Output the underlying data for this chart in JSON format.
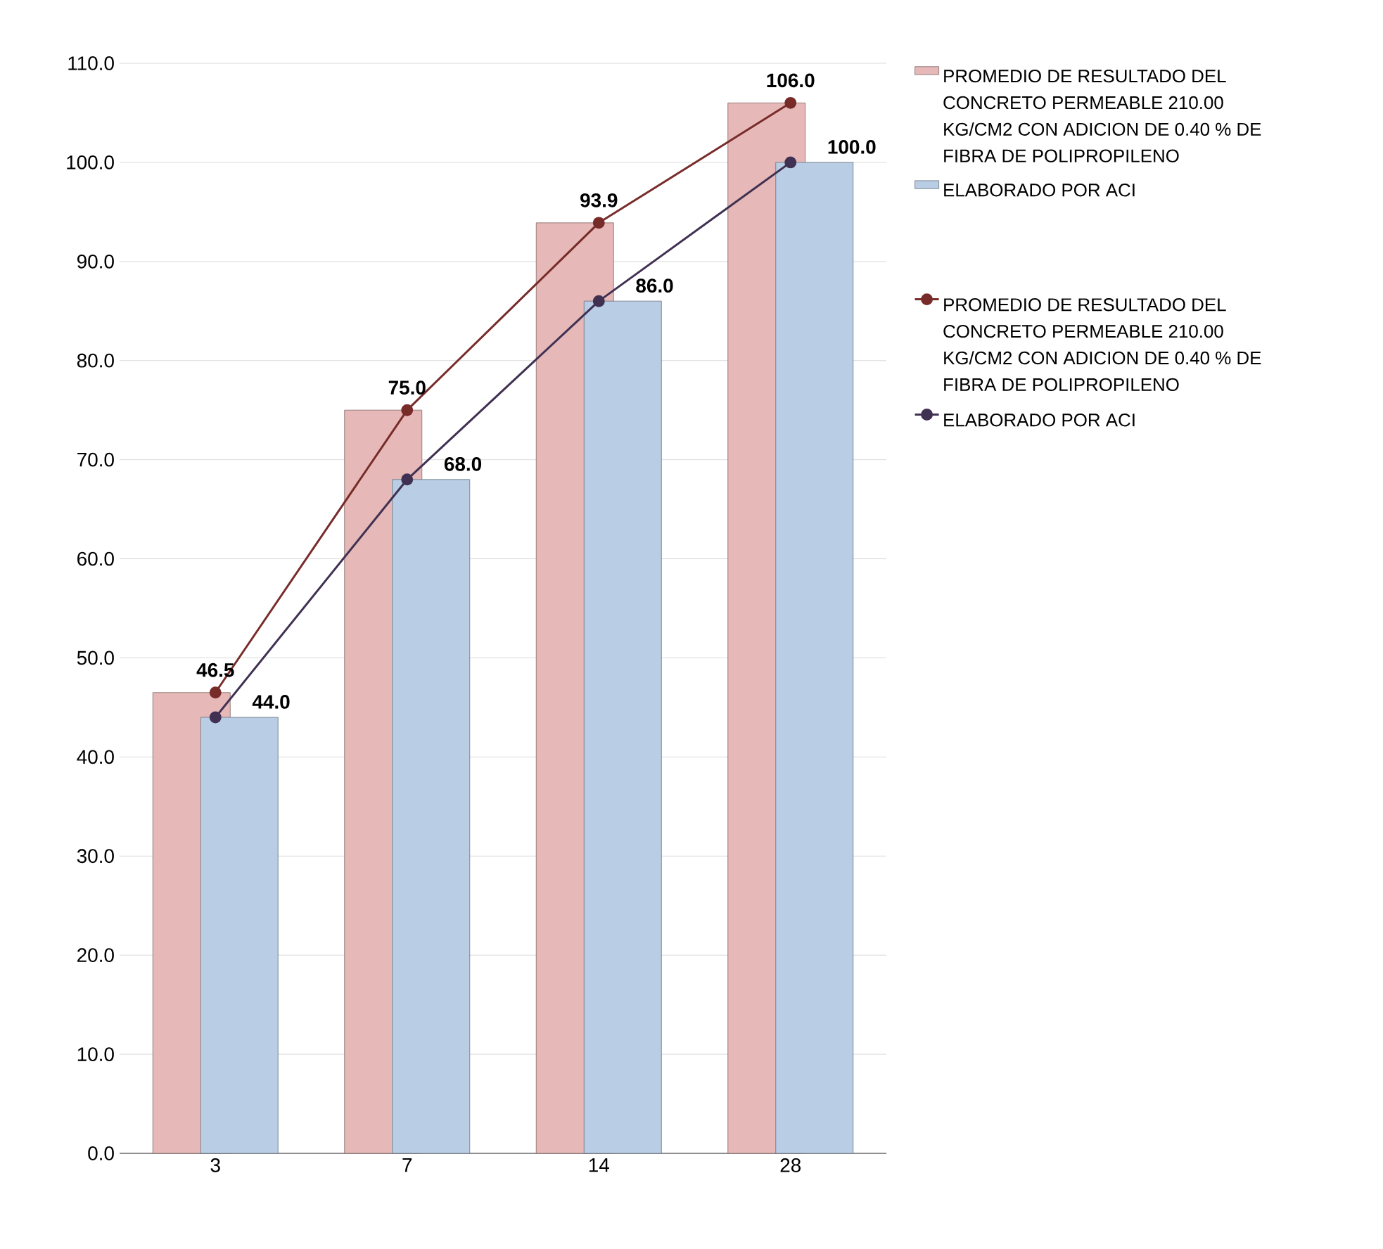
{
  "chart_data": {
    "type": "bar",
    "categories": [
      "3",
      "7",
      "14",
      "28"
    ],
    "series": [
      {
        "name": "PROMEDIO DE RESULTADO DEL CONCRETO PERMEABLE 210.00 KG/CM2 CON ADICION DE 0.40 % DE FIBRA DE POLIPROPILENO",
        "type": "bar",
        "color": "#e6b9b8",
        "values": [
          46.5,
          75.0,
          93.9,
          106.0
        ]
      },
      {
        "name": "ELABORADO POR ACI",
        "type": "bar",
        "color": "#b9cde5",
        "values": [
          44.0,
          68.0,
          86.0,
          100.0
        ]
      },
      {
        "name": "PROMEDIO DE RESULTADO DEL CONCRETO PERMEABLE 210.00 KG/CM2 CON ADICION DE 0.40 % DE FIBRA DE POLIPROPILENO",
        "type": "line",
        "color": "#772c2a",
        "values": [
          46.5,
          75.0,
          93.9,
          106.0
        ],
        "value_labels": [
          "46.5",
          "75.0",
          "93.9",
          "106.0"
        ]
      },
      {
        "name": "ELABORADO POR ACI",
        "type": "line",
        "color": "#403152",
        "values": [
          44.0,
          68.0,
          86.0,
          100.0
        ],
        "value_labels": [
          "44.0",
          "68.0",
          "86.0",
          "100.0"
        ]
      }
    ],
    "ylim": [
      0,
      110
    ],
    "yticks": [
      {
        "value": 0,
        "label": "0.0"
      },
      {
        "value": 10,
        "label": "10.0"
      },
      {
        "value": 20,
        "label": "20.0"
      },
      {
        "value": 30,
        "label": "30.0"
      },
      {
        "value": 40,
        "label": "40.0"
      },
      {
        "value": 50,
        "label": "50.0"
      },
      {
        "value": 60,
        "label": "60.0"
      },
      {
        "value": 70,
        "label": "70.0"
      },
      {
        "value": 80,
        "label": "80.0"
      },
      {
        "value": 90,
        "label": "90.0"
      },
      {
        "value": 100,
        "label": "100.0"
      },
      {
        "value": 110,
        "label": "110.0"
      }
    ],
    "grid": "y",
    "legend": "right",
    "marker": "circle"
  }
}
